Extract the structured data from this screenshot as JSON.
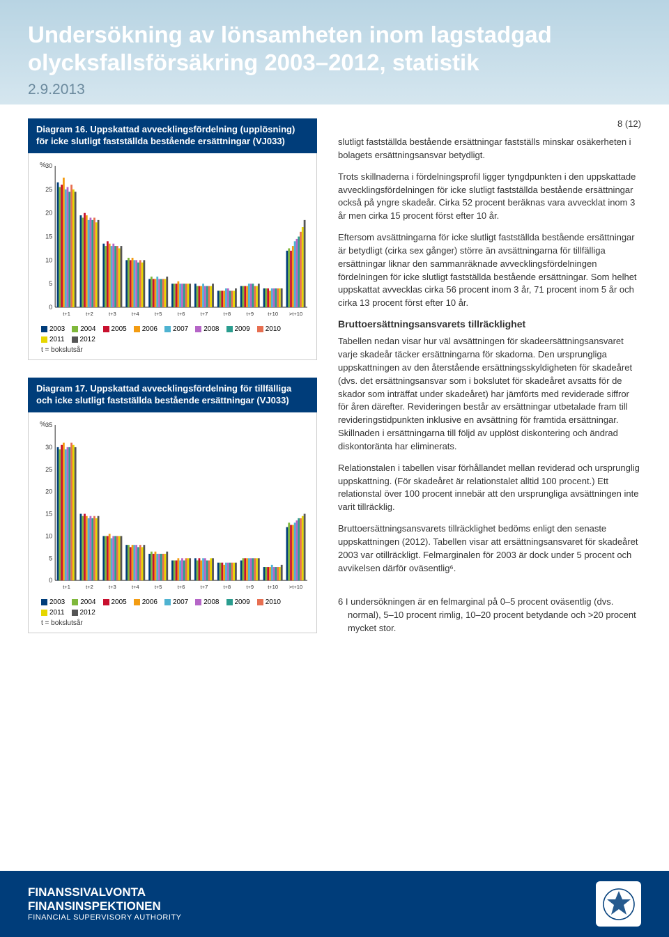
{
  "header": {
    "title_line1": "Undersökning av lönsamheten inom lagstadgad",
    "title_line2": "olycksfallsförsäkring 2003–2012, statistik",
    "date": "2.9.2013"
  },
  "page_num": "8 (12)",
  "series_labels": [
    "2003",
    "2004",
    "2005",
    "2006",
    "2007",
    "2008",
    "2009",
    "2010",
    "2011",
    "2012"
  ],
  "series_colors": [
    "#003d7a",
    "#7fb83b",
    "#c8102e",
    "#f39c12",
    "#4fb3d1",
    "#b565c7",
    "#2a9d8f",
    "#e76f51",
    "#e6d600",
    "#555555"
  ],
  "x_labels": [
    "t+1",
    "t+2",
    "t+3",
    "t+4",
    "t+5",
    "t+6",
    "t+7",
    "t+8",
    "t+9",
    "t+10",
    ">t+10"
  ],
  "chart1": {
    "title": "Diagram 16. Uppskattad avvecklingsfördelning (upplösning) för icke slutligt fastställda bestående ersättningar (VJ033)",
    "ylabel": "%",
    "ymax": 30,
    "ytick_step": 5,
    "data": [
      [
        26.5,
        25.5,
        26.0,
        27.5,
        25.0,
        25.5,
        24.5,
        26.0,
        25.0,
        24.5
      ],
      [
        19.5,
        19.0,
        20.0,
        19.5,
        18.5,
        19.0,
        18.5,
        19.0,
        18.0,
        18.5
      ],
      [
        13.5,
        13.0,
        14.0,
        13.5,
        13.0,
        13.5,
        13.0,
        13.0,
        12.5,
        13.0
      ],
      [
        10.0,
        10.5,
        10.0,
        10.5,
        10.0,
        10.0,
        9.5,
        10.0,
        9.5,
        10.0
      ],
      [
        6.0,
        6.5,
        6.0,
        6.0,
        6.5,
        6.0,
        6.0,
        6.0,
        6.0,
        6.5
      ],
      [
        5.0,
        5.0,
        5.0,
        5.5,
        5.0,
        5.0,
        5.0,
        5.0,
        5.0,
        5.0
      ],
      [
        5.0,
        4.5,
        4.5,
        4.5,
        5.0,
        4.5,
        4.5,
        4.5,
        4.5,
        5.0
      ],
      [
        3.5,
        3.5,
        3.5,
        3.5,
        4.0,
        4.0,
        3.5,
        3.5,
        3.5,
        4.0
      ],
      [
        4.5,
        4.5,
        4.5,
        4.5,
        5.0,
        5.0,
        5.0,
        4.5,
        4.5,
        5.0
      ],
      [
        4.0,
        4.0,
        4.0,
        3.5,
        4.0,
        4.0,
        4.0,
        4.0,
        4.0,
        4.0
      ],
      [
        12.0,
        12.5,
        12.0,
        13.0,
        14.0,
        14.5,
        15.0,
        16.0,
        17.0,
        18.5
      ]
    ],
    "legend_note": "t = bokslutsår"
  },
  "chart2": {
    "title": "Diagram 17. Uppskattad avvecklingsfördelning för tillfälliga och icke slutligt fastställda bestående ersättningar (VJ033)",
    "ylabel": "%",
    "ymax": 35,
    "ytick_step": 5,
    "data": [
      [
        30,
        29.5,
        30.5,
        31,
        29.5,
        30,
        30,
        31,
        30.5,
        30
      ],
      [
        15,
        14.5,
        15,
        14.5,
        14,
        14.5,
        14,
        14.5,
        14,
        14.5
      ],
      [
        10,
        10,
        10,
        10.5,
        9.5,
        10,
        10,
        10,
        10,
        10
      ],
      [
        8,
        8,
        7.5,
        8,
        8,
        8,
        7.5,
        8,
        7.5,
        8
      ],
      [
        6,
        6.5,
        6,
        6.5,
        6,
        6,
        6,
        6,
        6,
        6.5
      ],
      [
        4.5,
        4.5,
        4.5,
        5,
        4.5,
        5,
        4.5,
        5,
        5,
        5
      ],
      [
        5,
        4.5,
        5,
        4.5,
        5,
        5,
        4.5,
        4.5,
        5,
        5
      ],
      [
        4,
        4,
        4,
        3.5,
        4,
        4,
        4,
        4,
        4,
        4
      ],
      [
        4.5,
        5,
        5,
        5,
        5,
        5,
        5,
        5,
        5,
        5
      ],
      [
        3,
        3,
        3,
        3,
        3.5,
        3,
        3,
        3,
        3,
        3.5
      ],
      [
        12,
        13,
        12.5,
        12.5,
        13,
        13.5,
        14,
        14,
        14.5,
        15
      ]
    ],
    "legend_note": "t = bokslutsår"
  },
  "body": {
    "p1": "slutligt fastställda bestående ersättningar fastställs minskar osäkerheten i bolagets ersättningsansvar betydligt.",
    "p2": "Trots skillnaderna i fördelningsprofil ligger tyngdpunkten i den uppskattade avvecklingsfördelningen för icke slutligt fastställda bestående ersättningar också på yngre skadeår. Cirka 52 procent beräknas vara avvecklat inom 3 år men cirka 15 procent först efter 10 år.",
    "p3": "Eftersom avsättningarna för icke slutligt fastställda bestående ersättningar är betydligt (cirka sex gånger) större än avsättningarna för tillfälliga ersättningar liknar den sammanräknade avvecklingsfördelningen fördelningen för icke slutligt fastställda bestående ersättningar. Som helhet uppskattat avvecklas cirka 56 procent inom 3 år, 71 procent inom 5 år och cirka 13 procent först efter 10 år.",
    "h1": "Bruttoersättningsansvarets tillräcklighet",
    "p4": "Tabellen nedan visar hur väl avsättningen för skadeersättningsansvaret varje skadeår täcker ersättningarna för skadorna. Den ursprungliga uppskattningen av den återstående ersättningsskyldigheten för skadeåret (dvs. det ersättningsansvar som i bokslutet för skadeåret avsatts för de skador som inträffat under skadeåret) har jämförts med reviderade siffror för åren därefter. Revideringen består av ersättningar utbetalade fram till revideringstidpunkten inklusive en avsättning för framtida ersättningar. Skillnaden i ersättningarna till följd av upplöst diskontering och ändrad diskontoränta har eliminerats.",
    "p5": "Relationstalen i tabellen visar förhållandet mellan reviderad och ursprunglig uppskattning. (För skadeåret är relationstalet alltid 100 procent.) Ett relationstal över 100 procent innebär att den ursprungliga avsättningen inte varit tillräcklig.",
    "p6": "Bruttoersättningsansvarets tillräcklighet bedöms enligt den senaste uppskattningen (2012). Tabellen visar att ersättningsansvaret för skadeåret 2003 var otillräckligt. Felmarginalen för 2003 är dock under 5 procent och avvikelsen därför oväsentlig⁶.",
    "footnote": "6  I undersökningen är en felmarginal på 0–5 procent oväsentlig (dvs. normal), 5–10 procent rimlig, 10–20 procent betydande och >20 procent mycket stor."
  },
  "footer": {
    "line1": "FINANSSIVALVONTA",
    "line2": "FINANSINSPEKTIONEN",
    "line3": "FINANCIAL SUPERVISORY AUTHORITY"
  }
}
